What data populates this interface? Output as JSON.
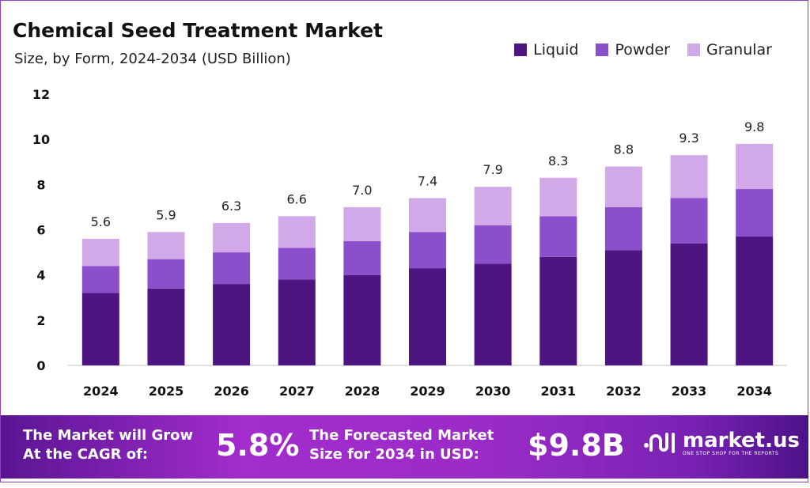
{
  "chart_data": {
    "type": "bar",
    "stacked": true,
    "title": "Chemical Seed Treatment Market",
    "subtitle": "Size, by Form, 2024-2034 (USD Billion)",
    "categories": [
      "2024",
      "2025",
      "2026",
      "2027",
      "2028",
      "2029",
      "2030",
      "2031",
      "2032",
      "2033",
      "2034"
    ],
    "series": [
      {
        "name": "Liquid",
        "color": "#4e1580",
        "values": [
          3.2,
          3.4,
          3.6,
          3.8,
          4.0,
          4.3,
          4.5,
          4.8,
          5.1,
          5.4,
          5.7
        ]
      },
      {
        "name": "Powder",
        "color": "#8b4fcc",
        "values": [
          1.2,
          1.3,
          1.4,
          1.4,
          1.5,
          1.6,
          1.7,
          1.8,
          1.9,
          2.0,
          2.1
        ]
      },
      {
        "name": "Granular",
        "color": "#d2a9e8",
        "values": [
          1.2,
          1.2,
          1.3,
          1.4,
          1.5,
          1.5,
          1.7,
          1.7,
          1.8,
          1.9,
          2.0
        ]
      }
    ],
    "totals": [
      "5.6",
      "5.9",
      "6.3",
      "6.6",
      "7.0",
      "7.4",
      "7.9",
      "8.3",
      "8.8",
      "9.3",
      "9.8"
    ],
    "yticks": [
      "0",
      "2",
      "4",
      "6",
      "8",
      "10",
      "12"
    ],
    "ylim": [
      0,
      12
    ],
    "grid": false,
    "legend": "top-right",
    "xlabel": "",
    "ylabel": ""
  },
  "footer": {
    "cagr_label_1": "The Market will Grow",
    "cagr_label_2": "At the CAGR of:",
    "cagr_value": "5.8%",
    "forecast_label_1": "The Forecasted Market",
    "forecast_label_2": "Size for 2034 in USD:",
    "forecast_value": "$9.8B",
    "brand": "market.us",
    "tagline": "ONE STOP SHOP FOR THE REPORTS"
  }
}
